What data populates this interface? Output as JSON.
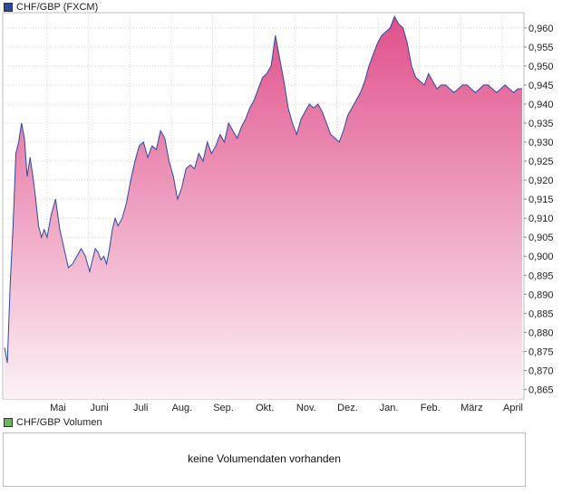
{
  "legend": {
    "price_label": "CHF/GBP (FXCM)",
    "price_color": "#2b4a9f",
    "volume_label": "CHF/GBP Volumen",
    "volume_color": "#66bb55"
  },
  "volume_panel": {
    "message": "keine Volumendaten vorhanden"
  },
  "chart_data": {
    "type": "area",
    "title": "",
    "xlabel": "",
    "ylabel": "",
    "ylim": [
      0.8625,
      0.964
    ],
    "y_ticks": [
      0.865,
      0.87,
      0.875,
      0.88,
      0.885,
      0.89,
      0.895,
      0.9,
      0.905,
      0.91,
      0.915,
      0.92,
      0.925,
      0.93,
      0.935,
      0.94,
      0.945,
      0.95,
      0.955,
      0.96
    ],
    "y_tick_labels": [
      "0,865",
      "0,870",
      "0,875",
      "0,880",
      "0,885",
      "0,890",
      "0,895",
      "0,900",
      "0,905",
      "0,910",
      "0,915",
      "0,920",
      "0,925",
      "0,930",
      "0,935",
      "0,940",
      "0,945",
      "0,950",
      "0,955",
      "0,960"
    ],
    "x_months": [
      "Mai",
      "Juni",
      "Juli",
      "Aug.",
      "Sep.",
      "Okt.",
      "Nov.",
      "Dez.",
      "Jan.",
      "Feb.",
      "März",
      "April"
    ],
    "series": [
      {
        "line_color": "#2b4a9f",
        "fill_top_color": "#e0508a",
        "fill_bottom_color": "#fdf1f6",
        "x": [
          0,
          2,
          4,
          6,
          8,
          10,
          12,
          14,
          16,
          18,
          20,
          22,
          24,
          26,
          28,
          30,
          33,
          36,
          39,
          42,
          45,
          48,
          51,
          54,
          57,
          60,
          62,
          64,
          66,
          68,
          70,
          72,
          74,
          76,
          78,
          80,
          83,
          86,
          89,
          92,
          95,
          98,
          101,
          104,
          107,
          110,
          113,
          116,
          119,
          122,
          125,
          128,
          131,
          134,
          137,
          140,
          143,
          146,
          149,
          152,
          155,
          158,
          161,
          164,
          167,
          170,
          173,
          176,
          179,
          182,
          185,
          188,
          191,
          194,
          197,
          200,
          203,
          206,
          209,
          212,
          215,
          218,
          221,
          224,
          227,
          230,
          233,
          236,
          239,
          242,
          245,
          248,
          251,
          254,
          257,
          260,
          263,
          266,
          269,
          272,
          275,
          278,
          281,
          284,
          287,
          290,
          293,
          296,
          299,
          302,
          305,
          308,
          311,
          314,
          317,
          320,
          323,
          326,
          329,
          332,
          335,
          338,
          341,
          344,
          347,
          350,
          353,
          356,
          359,
          362,
          365
        ],
        "y": [
          0.876,
          0.872,
          0.893,
          0.908,
          0.927,
          0.93,
          0.935,
          0.931,
          0.921,
          0.926,
          0.921,
          0.915,
          0.908,
          0.905,
          0.907,
          0.905,
          0.911,
          0.915,
          0.907,
          0.902,
          0.897,
          0.898,
          0.9,
          0.902,
          0.9,
          0.896,
          0.899,
          0.902,
          0.901,
          0.899,
          0.9,
          0.898,
          0.902,
          0.907,
          0.91,
          0.908,
          0.91,
          0.914,
          0.92,
          0.925,
          0.929,
          0.93,
          0.926,
          0.929,
          0.928,
          0.933,
          0.931,
          0.925,
          0.921,
          0.915,
          0.918,
          0.923,
          0.924,
          0.923,
          0.927,
          0.925,
          0.93,
          0.927,
          0.929,
          0.932,
          0.93,
          0.935,
          0.933,
          0.931,
          0.934,
          0.936,
          0.939,
          0.941,
          0.944,
          0.947,
          0.948,
          0.95,
          0.958,
          0.952,
          0.946,
          0.939,
          0.935,
          0.932,
          0.936,
          0.938,
          0.94,
          0.939,
          0.94,
          0.938,
          0.935,
          0.932,
          0.931,
          0.93,
          0.933,
          0.937,
          0.939,
          0.941,
          0.943,
          0.946,
          0.95,
          0.953,
          0.956,
          0.958,
          0.959,
          0.96,
          0.963,
          0.961,
          0.96,
          0.956,
          0.95,
          0.947,
          0.946,
          0.945,
          0.948,
          0.946,
          0.944,
          0.945,
          0.945,
          0.944,
          0.943,
          0.944,
          0.945,
          0.945,
          0.944,
          0.943,
          0.944,
          0.945,
          0.945,
          0.944,
          0.943,
          0.944,
          0.945,
          0.944,
          0.943,
          0.944,
          0.944
        ]
      }
    ],
    "grid": true,
    "legend_position": "top-left"
  }
}
